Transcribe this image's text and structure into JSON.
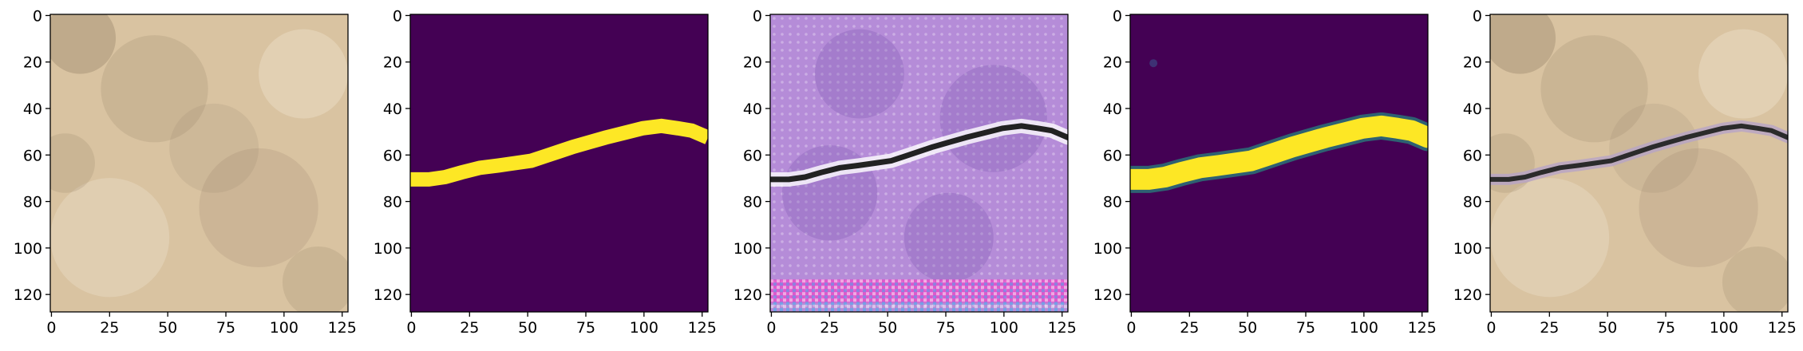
{
  "figure": {
    "panels": [
      {
        "name": "input-photo",
        "kind": "photo",
        "palette": {
          "base": "#d9c3a1",
          "dark": "#8f7b62",
          "light": "#efe3cf"
        },
        "crack": false
      },
      {
        "name": "ground-truth-mask",
        "kind": "mask",
        "palette": {
          "background": "#440154",
          "foreground": "#fde725"
        },
        "crack": true
      },
      {
        "name": "generated-texture",
        "kind": "texture",
        "palette": {
          "base": "#b58cd8",
          "dark": "#7d58b0",
          "light": "#d5bdea",
          "crack": "#222222",
          "crackLight": "#ffffff",
          "bottomBand": "#ff2fc2"
        },
        "crack": true
      },
      {
        "name": "predicted-mask",
        "kind": "mask-soft",
        "palette": {
          "background": "#440154",
          "foreground": "#fde725",
          "edge": "#1fa187"
        },
        "crack": true
      },
      {
        "name": "overlay-photo",
        "kind": "photo-crack",
        "palette": {
          "base": "#d9c3a1",
          "dark": "#8f7b62",
          "light": "#efe3cf",
          "crack": "#2b2b2b",
          "halo": "#b6a4c7"
        },
        "crack": true
      }
    ],
    "axes": {
      "xticks": [
        "0",
        "25",
        "50",
        "75",
        "100",
        "125"
      ],
      "yticks": [
        "0",
        "20",
        "40",
        "60",
        "80",
        "100",
        "120"
      ],
      "xtick_values": [
        0,
        25,
        50,
        75,
        100,
        125
      ],
      "ytick_values": [
        0,
        20,
        40,
        60,
        80,
        100,
        120
      ],
      "image_range": [
        0,
        128
      ]
    },
    "crack_path": [
      [
        0,
        71
      ],
      [
        8,
        71
      ],
      [
        15,
        70
      ],
      [
        22,
        68
      ],
      [
        30,
        66
      ],
      [
        38,
        65
      ],
      [
        45,
        64
      ],
      [
        52,
        63
      ],
      [
        58,
        61
      ],
      [
        64,
        59
      ],
      [
        70,
        57
      ],
      [
        77,
        55
      ],
      [
        84,
        53
      ],
      [
        92,
        51
      ],
      [
        100,
        49
      ],
      [
        108,
        48
      ],
      [
        115,
        49
      ],
      [
        121,
        50
      ],
      [
        128,
        53
      ]
    ]
  }
}
